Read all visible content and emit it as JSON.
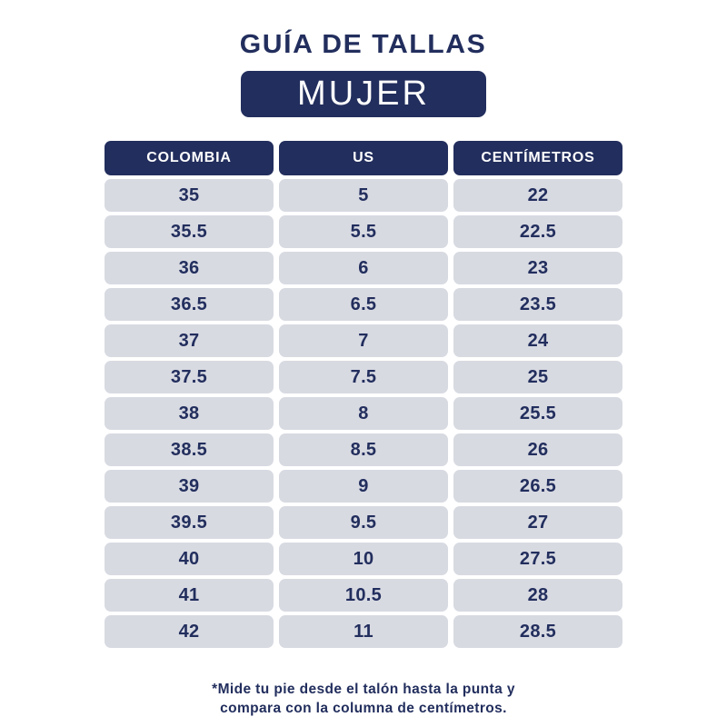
{
  "page": {
    "title": "GUÍA DE TALLAS",
    "badge_label": "MUJER",
    "footnote_line1": "*Mide tu pie desde el talón hasta la punta y",
    "footnote_line2": "compara con la columna de centímetros."
  },
  "colors": {
    "navy": "#222e5d",
    "row_bg": "#d8dae2",
    "white": "#ffffff"
  },
  "chart_data": {
    "type": "table",
    "title": "GUÍA DE TALLAS - MUJER",
    "columns": [
      "COLOMBIA",
      "US",
      "CENTÍMETROS"
    ],
    "rows": [
      [
        "35",
        "5",
        "22"
      ],
      [
        "35.5",
        "5.5",
        "22.5"
      ],
      [
        "36",
        "6",
        "23"
      ],
      [
        "36.5",
        "6.5",
        "23.5"
      ],
      [
        "37",
        "7",
        "24"
      ],
      [
        "37.5",
        "7.5",
        "25"
      ],
      [
        "38",
        "8",
        "25.5"
      ],
      [
        "38.5",
        "8.5",
        "26"
      ],
      [
        "39",
        "9",
        "26.5"
      ],
      [
        "39.5",
        "9.5",
        "27"
      ],
      [
        "40",
        "10",
        "27.5"
      ],
      [
        "41",
        "10.5",
        "28"
      ],
      [
        "42",
        "11",
        "28.5"
      ]
    ]
  }
}
